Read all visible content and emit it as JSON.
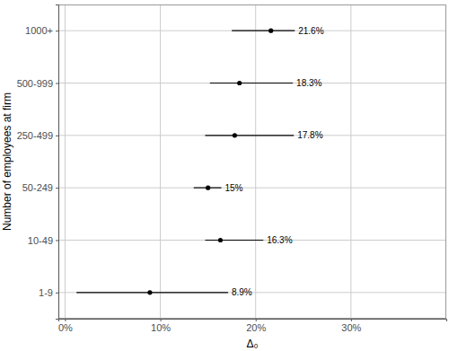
{
  "chart_data": {
    "type": "dot",
    "orientation": "horizontal",
    "y_label": "Number of employees at firm",
    "x_label": "Δ₀",
    "categories": [
      "1-9",
      "10-49",
      "50-249",
      "250-499",
      "500-999",
      "1000+"
    ],
    "values": [
      8.9,
      16.3,
      15,
      17.8,
      18.3,
      21.6
    ],
    "value_labels": [
      "8.9%",
      "16.3%",
      "15%",
      "17.8%",
      "18.3%",
      "21.6%"
    ],
    "lower": [
      1.2,
      14.7,
      13.5,
      14.7,
      15.2,
      17.5
    ],
    "upper": [
      17.1,
      20.8,
      16.4,
      24.0,
      23.9,
      24.1
    ],
    "color": "#000000",
    "xlim": [
      -0.7,
      40
    ],
    "xticks": [
      {
        "value": 0,
        "label": "0%"
      },
      {
        "value": 10,
        "label": "10%"
      },
      {
        "value": 20,
        "label": "20%"
      },
      {
        "value": 30,
        "label": "30%"
      }
    ],
    "grid": true,
    "data_labels": true
  }
}
